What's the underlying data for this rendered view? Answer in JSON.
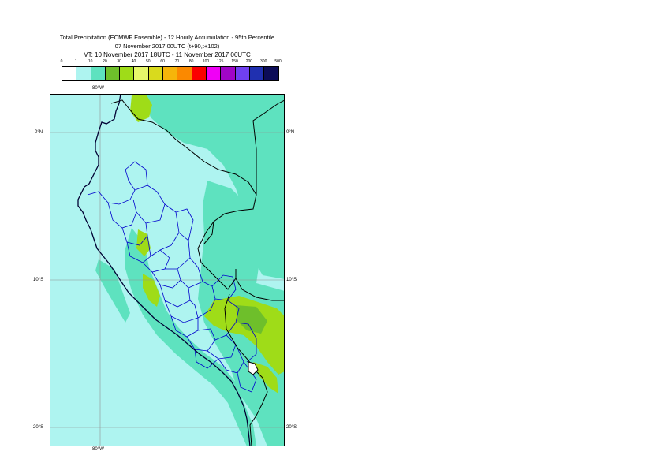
{
  "title": {
    "line1": "Total Precipitation (ECMWF Ensemble) - 12 Hourly Accumulation - 95th Percentile",
    "line2": "07 November 2017 00UTC (t+90,t+102)",
    "line3": "VT: 10 November 2017 18UTC - 11 November 2017 06UTC"
  },
  "legend": {
    "labels": [
      "0",
      "1",
      "10",
      "20",
      "30",
      "40",
      "50",
      "60",
      "70",
      "80",
      "100",
      "125",
      "150",
      "200",
      "300",
      "500"
    ],
    "colors": [
      "#ffffff",
      "#aef4f0",
      "#5ee2bf",
      "#6ebf2b",
      "#9fdc18",
      "#e6f76a",
      "#d9da1d",
      "#f6b50a",
      "#fb8900",
      "#fb0000",
      "#f000f6",
      "#a005c7",
      "#7040f0",
      "#2030b0",
      "#0c0c58"
    ]
  },
  "map": {
    "lat_labels_left": [
      "0°N",
      "10°S",
      "20°S"
    ],
    "lat_labels_right": [
      "0°N",
      "10°S",
      "20°S"
    ],
    "lon_label_top": "80°W",
    "lon_label_bottom": "80°W",
    "colors": {
      "ocean": "#aef4f0",
      "light": "#aef4f0",
      "medium": "#5ee2bf",
      "heavy": "#9fdc18",
      "heavy_dark": "#6ebf2b",
      "coast": "#000033",
      "border": "#000000",
      "regions": "#0000cc",
      "grid": "#909090"
    }
  }
}
